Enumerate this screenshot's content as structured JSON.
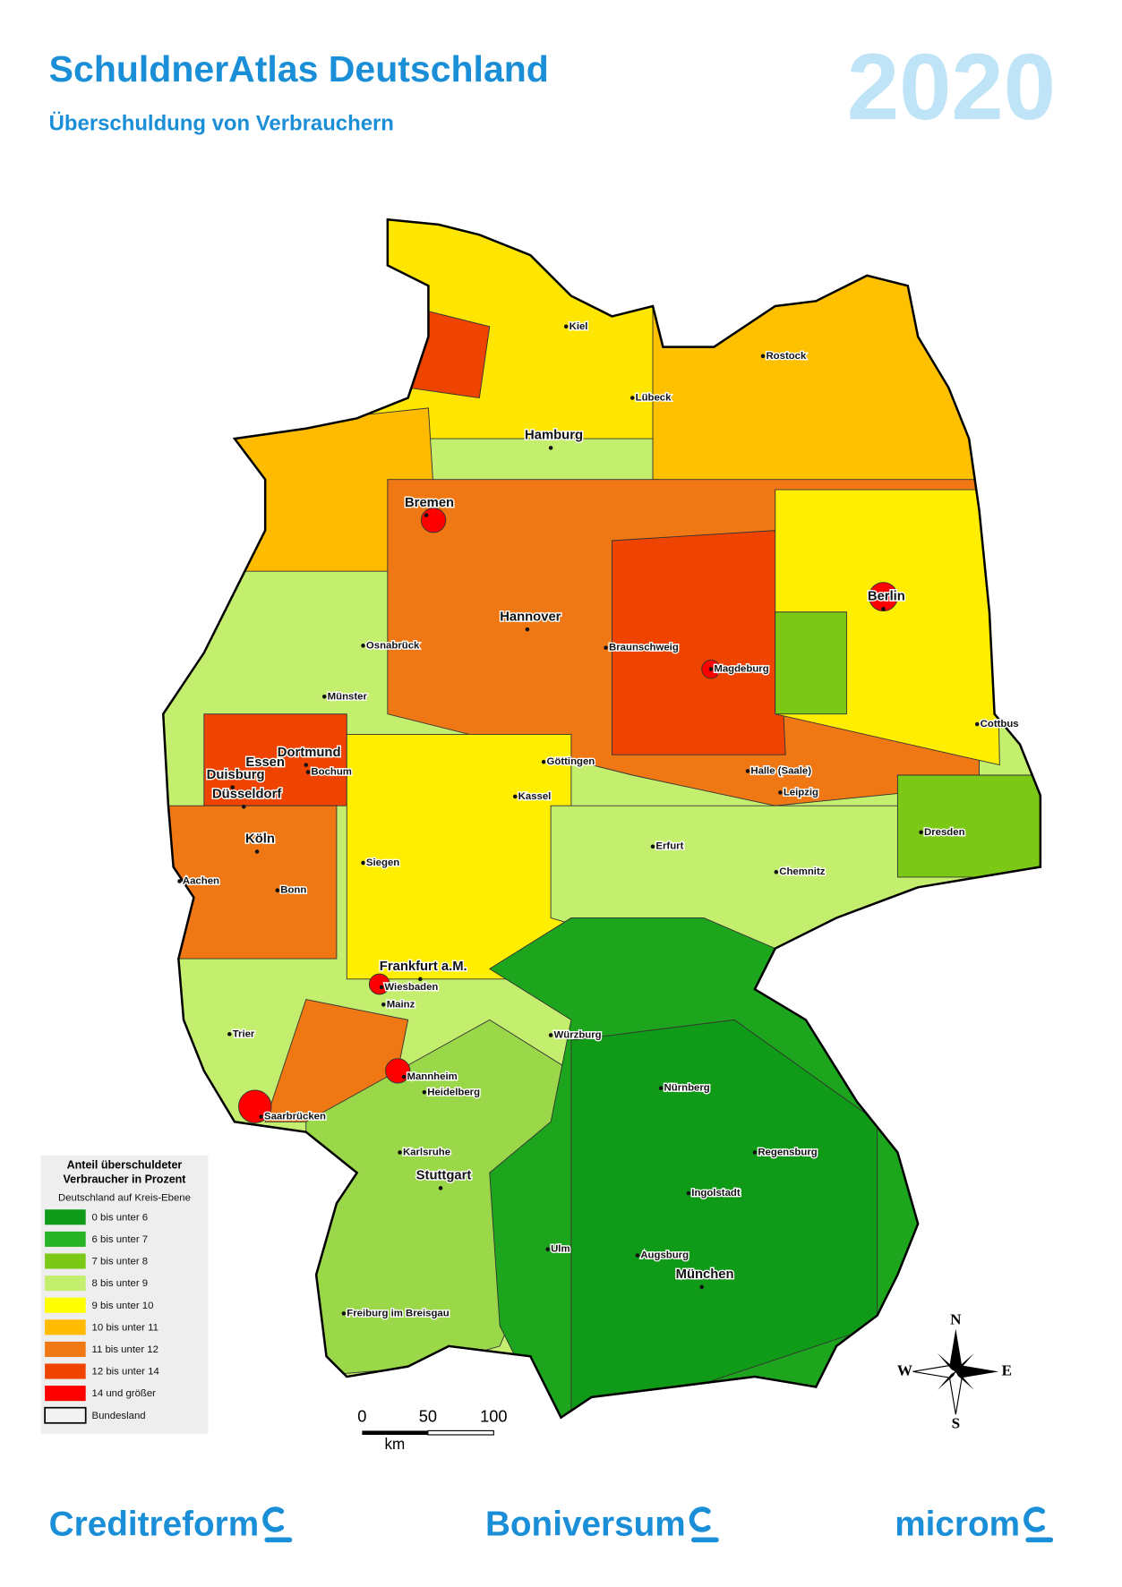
{
  "header": {
    "title": "SchuldnerAtlas Deutschland",
    "subtitle": "Überschuldung von Verbrauchern",
    "year": "2020"
  },
  "legend": {
    "title_lines": [
      "Anteil überschuldeter",
      "Verbraucher in Prozent"
    ],
    "subtitle": "Deutschland auf Kreis-Ebene",
    "items": [
      {
        "label": "0 bis unter 6",
        "color": "#0f9a18"
      },
      {
        "label": "6 bis unter 7",
        "color": "#26b326"
      },
      {
        "label": "7 bis unter 8",
        "color": "#7cc816"
      },
      {
        "label": "8 bis unter 9",
        "color": "#c4ee6e"
      },
      {
        "label": "9 bis unter 10",
        "color": "#ffff00"
      },
      {
        "label": "10 bis unter 11",
        "color": "#ffbb00"
      },
      {
        "label": "11 bis unter 12",
        "color": "#f07814"
      },
      {
        "label": "12 bis unter 14",
        "color": "#ee4400"
      },
      {
        "label": "14 und größer",
        "color": "#ff0000"
      },
      {
        "label": "Bundesland",
        "color": "#f2f2f2"
      }
    ]
  },
  "cities": [
    "Kiel",
    "Rostock",
    "Lübeck",
    "Hamburg",
    "Bremen",
    "Berlin",
    "Hannover",
    "Osnabrück",
    "Braunschweig",
    "Magdeburg",
    "Münster",
    "Cottbus",
    "Dortmund",
    "Essen",
    "Bochum",
    "Duisburg",
    "Göttingen",
    "Halle (Saale)",
    "Kassel",
    "Leipzig",
    "Düsseldorf",
    "Köln",
    "Erfurt",
    "Dresden",
    "Siegen",
    "Aachen",
    "Chemnitz",
    "Bonn",
    "Frankfurt a.M.",
    "Wiesbaden",
    "Mainz",
    "Würzburg",
    "Trier",
    "Nürnberg",
    "Mannheim",
    "Heidelberg",
    "Saarbrücken",
    "Karlsruhe",
    "Regensburg",
    "Stuttgart",
    "Ingolstadt",
    "Ulm",
    "Augsburg",
    "München",
    "Freiburg im Breisgau"
  ],
  "scale": {
    "ticks": [
      "0",
      "50",
      "100"
    ],
    "unit": "km"
  },
  "compass": {
    "n": "N",
    "s": "S",
    "w": "W",
    "e": "E"
  },
  "footer": {
    "logos": [
      "Creditreform",
      "Boniversum",
      "microm"
    ]
  }
}
